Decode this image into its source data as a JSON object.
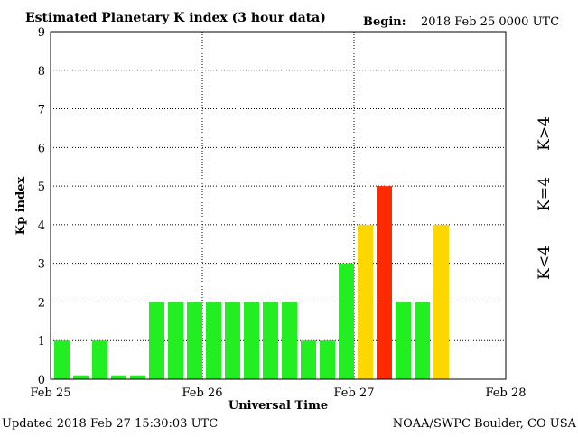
{
  "header": {
    "title": "Estimated Planetary K index (3 hour data)",
    "begin_label": "Begin:",
    "begin_value": "2018 Feb 25 0000 UTC"
  },
  "footer": {
    "updated": "Updated 2018 Feb 27 15:30:03 UTC",
    "source": "NOAA/SWPC Boulder, CO USA"
  },
  "legend": {
    "high": "K>4",
    "equal": "K=4",
    "low": "K<4"
  },
  "colors": {
    "low": "#22ee22",
    "equal": "#ffd700",
    "high": "#ff2a00"
  },
  "chart_data": {
    "type": "bar",
    "title": "Estimated Planetary K index (3 hour data)",
    "xlabel": "Universal Time",
    "ylabel": "Kp index",
    "ylim": [
      0,
      9
    ],
    "yticks": [
      "0",
      "1",
      "2",
      "3",
      "4",
      "5",
      "6",
      "7",
      "8",
      "9"
    ],
    "xticks": [
      "Feb 25",
      "Feb 26",
      "Feb 27",
      "Feb 28"
    ],
    "grid": true,
    "interval_hours": 3,
    "values": [
      1,
      0.1,
      1,
      0.1,
      0.1,
      2,
      2,
      2,
      2,
      2,
      2,
      2,
      2,
      1,
      1,
      3,
      4,
      5,
      2,
      2,
      4
    ]
  }
}
